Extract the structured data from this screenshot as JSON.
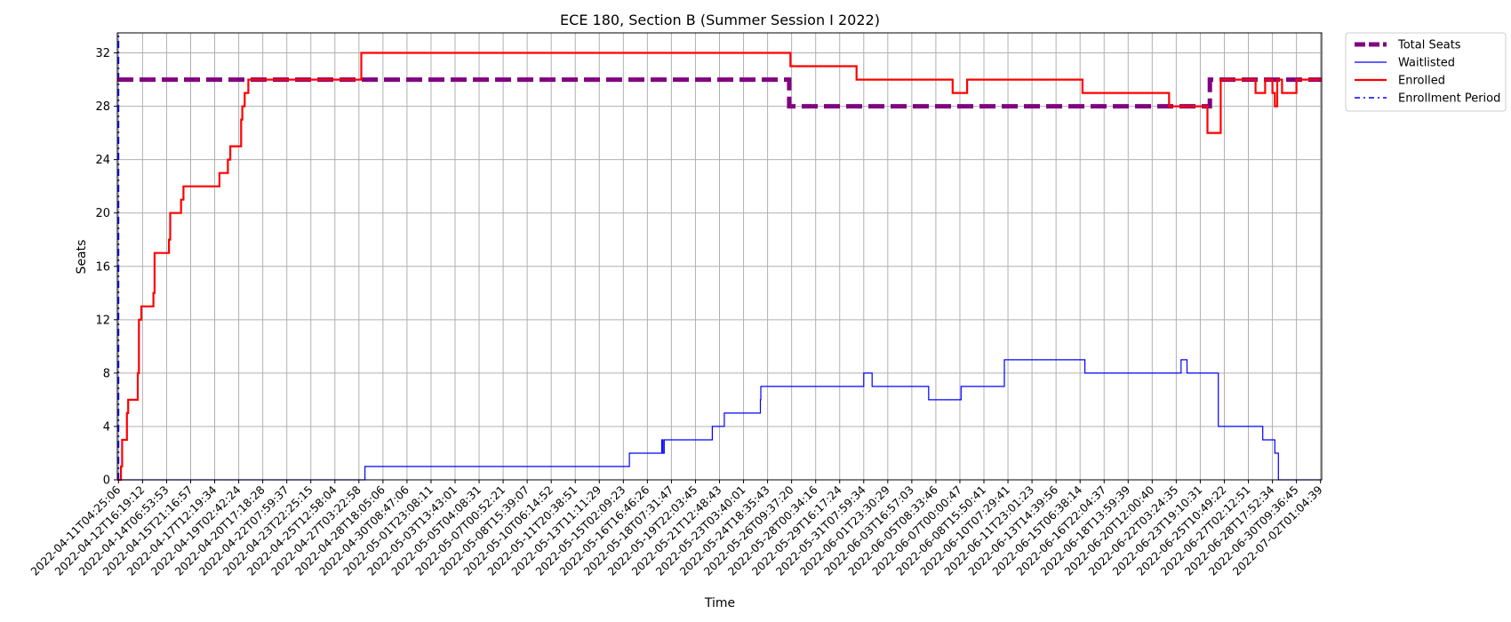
{
  "chart_data": {
    "type": "line",
    "title": "ECE 180, Section B (Summer Session I 2022)",
    "xlabel": "Time",
    "ylabel": "Seats",
    "ylim": [
      0,
      33.5
    ],
    "yticks": [
      0,
      4,
      8,
      12,
      16,
      20,
      24,
      28,
      32
    ],
    "grid": true,
    "legend_position": "outside-top-right",
    "x_ticks": [
      "2022-04-11T04:25:06",
      "2022-04-12T16:19:12",
      "2022-04-14T06:53:53",
      "2022-04-15T21:16:57",
      "2022-04-17T12:19:34",
      "2022-04-19T02:42:24",
      "2022-04-20T17:18:28",
      "2022-04-22T07:59:37",
      "2022-04-23T22:25:15",
      "2022-04-25T12:58:04",
      "2022-04-27T03:22:58",
      "2022-04-28T18:05:06",
      "2022-04-30T08:47:06",
      "2022-05-01T23:08:11",
      "2022-05-03T13:43:01",
      "2022-05-05T04:08:31",
      "2022-05-07T00:52:21",
      "2022-05-08T15:39:07",
      "2022-05-10T06:14:52",
      "2022-05-11T20:38:51",
      "2022-05-13T11:11:29",
      "2022-05-15T02:09:23",
      "2022-05-16T16:46:26",
      "2022-05-18T07:31:47",
      "2022-05-19T22:03:45",
      "2022-05-21T12:48:43",
      "2022-05-23T03:40:01",
      "2022-05-24T18:35:43",
      "2022-05-26T09:37:20",
      "2022-05-28T00:34:16",
      "2022-05-29T16:17:24",
      "2022-05-31T07:59:34",
      "2022-06-01T23:30:29",
      "2022-06-03T16:57:03",
      "2022-06-05T08:33:46",
      "2022-06-07T00:00:47",
      "2022-06-08T15:50:41",
      "2022-06-10T07:29:41",
      "2022-06-11T23:01:23",
      "2022-06-13T14:39:56",
      "2022-06-15T06:38:14",
      "2022-06-16T22:04:37",
      "2022-06-18T13:59:39",
      "2022-06-20T12:00:40",
      "2022-06-22T03:24:35",
      "2022-06-23T19:10:31",
      "2022-06-25T10:49:22",
      "2022-06-27T02:12:51",
      "2022-06-28T17:52:34",
      "2022-06-30T09:36:45",
      "2022-07-02T01:04:39"
    ],
    "x_range_tick_index": [
      -0.05,
      50.05
    ],
    "series": [
      {
        "name": "Total Seats",
        "color": "#800080",
        "style": "dashed-thick",
        "points": [
          [
            -0.05,
            30
          ],
          [
            27.9,
            30
          ],
          [
            27.9,
            28
          ],
          [
            45.4,
            28
          ],
          [
            45.4,
            30
          ],
          [
            50.05,
            30
          ]
        ]
      },
      {
        "name": "Waitlisted",
        "color": "#0000ff",
        "style": "solid-thin",
        "points": [
          [
            -0.05,
            0
          ],
          [
            10.25,
            0
          ],
          [
            10.25,
            1
          ],
          [
            21.25,
            1
          ],
          [
            21.25,
            2
          ],
          [
            22.6,
            2
          ],
          [
            22.6,
            3
          ],
          [
            22.65,
            3
          ],
          [
            22.65,
            2
          ],
          [
            22.7,
            2
          ],
          [
            22.7,
            3
          ],
          [
            24.7,
            3
          ],
          [
            24.7,
            4
          ],
          [
            25.2,
            4
          ],
          [
            25.2,
            5
          ],
          [
            26.7,
            5
          ],
          [
            26.7,
            6
          ],
          [
            26.72,
            6
          ],
          [
            26.72,
            7
          ],
          [
            31.0,
            7
          ],
          [
            31.0,
            8
          ],
          [
            31.35,
            8
          ],
          [
            31.35,
            7
          ],
          [
            33.7,
            7
          ],
          [
            33.7,
            6
          ],
          [
            35.05,
            6
          ],
          [
            35.05,
            7
          ],
          [
            36.85,
            7
          ],
          [
            36.85,
            9
          ],
          [
            40.2,
            9
          ],
          [
            40.2,
            8
          ],
          [
            44.2,
            8
          ],
          [
            44.2,
            9
          ],
          [
            44.45,
            9
          ],
          [
            44.45,
            8
          ],
          [
            45.75,
            8
          ],
          [
            45.75,
            4
          ],
          [
            47.6,
            4
          ],
          [
            47.6,
            3
          ],
          [
            48.1,
            3
          ],
          [
            48.1,
            2
          ],
          [
            48.25,
            2
          ],
          [
            48.25,
            0
          ],
          [
            50.05,
            0
          ]
        ]
      },
      {
        "name": "Enrolled",
        "color": "#ff0000",
        "style": "solid-thick",
        "points": [
          [
            -0.05,
            0
          ],
          [
            0.1,
            0
          ],
          [
            0.1,
            1
          ],
          [
            0.15,
            1
          ],
          [
            0.15,
            3
          ],
          [
            0.35,
            3
          ],
          [
            0.35,
            5
          ],
          [
            0.4,
            5
          ],
          [
            0.4,
            6
          ],
          [
            0.8,
            6
          ],
          [
            0.8,
            8
          ],
          [
            0.85,
            8
          ],
          [
            0.85,
            12
          ],
          [
            0.95,
            12
          ],
          [
            0.95,
            13
          ],
          [
            1.45,
            13
          ],
          [
            1.45,
            14
          ],
          [
            1.5,
            14
          ],
          [
            1.5,
            17
          ],
          [
            2.1,
            17
          ],
          [
            2.1,
            18
          ],
          [
            2.15,
            18
          ],
          [
            2.15,
            20
          ],
          [
            2.6,
            20
          ],
          [
            2.6,
            21
          ],
          [
            2.7,
            21
          ],
          [
            2.7,
            22
          ],
          [
            4.2,
            22
          ],
          [
            4.2,
            23
          ],
          [
            4.55,
            23
          ],
          [
            4.55,
            24
          ],
          [
            4.65,
            24
          ],
          [
            4.65,
            25
          ],
          [
            5.1,
            25
          ],
          [
            5.1,
            27
          ],
          [
            5.15,
            27
          ],
          [
            5.15,
            28
          ],
          [
            5.25,
            28
          ],
          [
            5.25,
            29
          ],
          [
            5.4,
            29
          ],
          [
            5.4,
            30
          ],
          [
            10.1,
            30
          ],
          [
            10.1,
            32
          ],
          [
            27.95,
            32
          ],
          [
            27.95,
            31
          ],
          [
            30.7,
            31
          ],
          [
            30.7,
            30
          ],
          [
            34.7,
            30
          ],
          [
            34.7,
            29
          ],
          [
            35.3,
            29
          ],
          [
            35.3,
            30
          ],
          [
            40.1,
            30
          ],
          [
            40.1,
            29
          ],
          [
            43.7,
            29
          ],
          [
            43.7,
            28
          ],
          [
            45.3,
            28
          ],
          [
            45.3,
            26
          ],
          [
            45.85,
            26
          ],
          [
            45.85,
            30
          ],
          [
            47.3,
            30
          ],
          [
            47.3,
            29
          ],
          [
            47.7,
            29
          ],
          [
            47.7,
            30
          ],
          [
            48.0,
            30
          ],
          [
            48.0,
            29
          ],
          [
            48.1,
            29
          ],
          [
            48.1,
            28
          ],
          [
            48.2,
            28
          ],
          [
            48.2,
            30
          ],
          [
            48.4,
            30
          ],
          [
            48.4,
            29
          ],
          [
            49.0,
            29
          ],
          [
            49.0,
            30
          ],
          [
            50.05,
            30
          ]
        ]
      },
      {
        "name": "Enrollment Period",
        "color": "#0000ff",
        "style": "dashdot-vertical",
        "points": [
          [
            0.0,
            0
          ],
          [
            0.0,
            33.5
          ]
        ]
      }
    ]
  }
}
